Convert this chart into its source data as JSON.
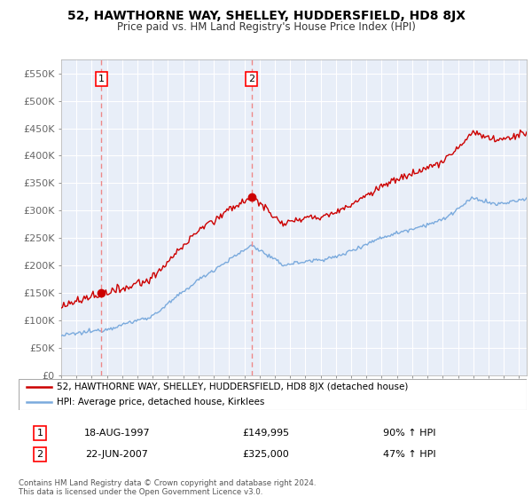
{
  "title": "52, HAWTHORNE WAY, SHELLEY, HUDDERSFIELD, HD8 8JX",
  "subtitle": "Price paid vs. HM Land Registry's House Price Index (HPI)",
  "ylim": [
    0,
    575000
  ],
  "xlim_start": 1995.0,
  "xlim_end": 2025.5,
  "yticks": [
    0,
    50000,
    100000,
    150000,
    200000,
    250000,
    300000,
    350000,
    400000,
    450000,
    500000,
    550000
  ],
  "ytick_labels": [
    "£0",
    "£50K",
    "£100K",
    "£150K",
    "£200K",
    "£250K",
    "£300K",
    "£350K",
    "£400K",
    "£450K",
    "£500K",
    "£550K"
  ],
  "sale1_x": 1997.63,
  "sale1_y": 149995,
  "sale1_label": "1",
  "sale1_date": "18-AUG-1997",
  "sale1_price": "£149,995",
  "sale1_hpi": "90% ↑ HPI",
  "sale2_x": 2007.47,
  "sale2_y": 325000,
  "sale2_label": "2",
  "sale2_date": "22-JUN-2007",
  "sale2_price": "£325,000",
  "sale2_hpi": "47% ↑ HPI",
  "legend_line1": "52, HAWTHORNE WAY, SHELLEY, HUDDERSFIELD, HD8 8JX (detached house)",
  "legend_line2": "HPI: Average price, detached house, Kirklees",
  "line_color_red": "#cc0000",
  "line_color_blue": "#7aaadd",
  "dashed_color": "#ee8888",
  "footer": "Contains HM Land Registry data © Crown copyright and database right 2024.\nThis data is licensed under the Open Government Licence v3.0.",
  "bg_color": "#e8eef8",
  "grid_color": "#ffffff",
  "xtick_years": [
    1995,
    1996,
    1997,
    1998,
    1999,
    2000,
    2001,
    2002,
    2003,
    2004,
    2005,
    2006,
    2007,
    2008,
    2009,
    2010,
    2011,
    2012,
    2013,
    2014,
    2015,
    2016,
    2017,
    2018,
    2019,
    2020,
    2021,
    2022,
    2023,
    2024,
    2025
  ]
}
